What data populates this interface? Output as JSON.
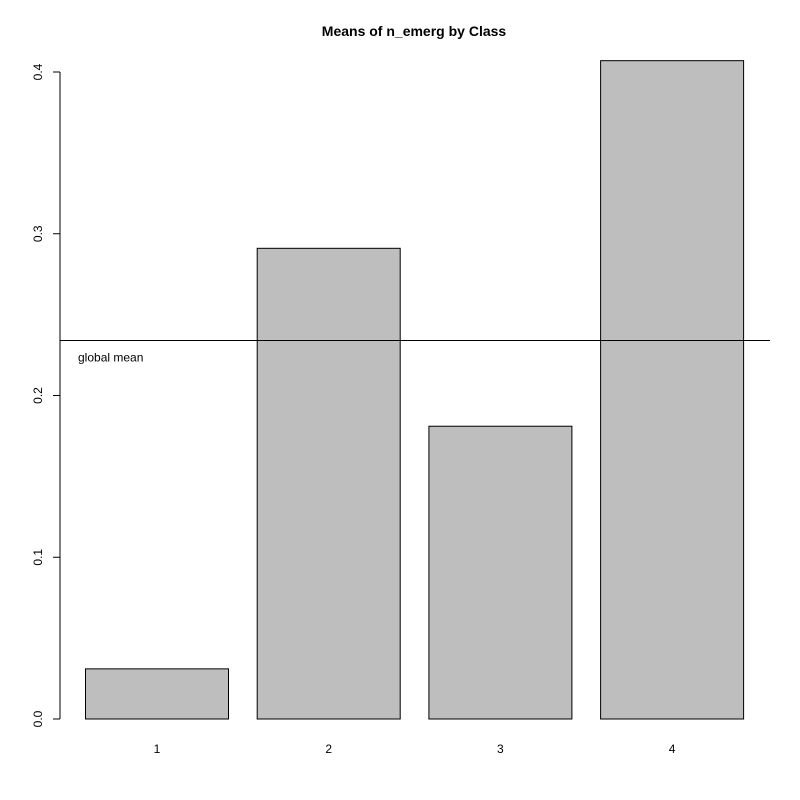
{
  "chart_data": {
    "type": "bar",
    "title": "Means of n_emerg by Class",
    "xlabel": "",
    "ylabel": "",
    "categories": [
      "1",
      "2",
      "3",
      "4"
    ],
    "values": [
      0.031,
      0.291,
      0.181,
      0.407
    ],
    "ylim": [
      0,
      0.4
    ],
    "yticks": [
      "0.0",
      "0.1",
      "0.2",
      "0.3",
      "0.4"
    ],
    "bar_color": "#bebebe",
    "grid": false,
    "reference_line": {
      "value": 0.234,
      "label": "global mean"
    }
  }
}
